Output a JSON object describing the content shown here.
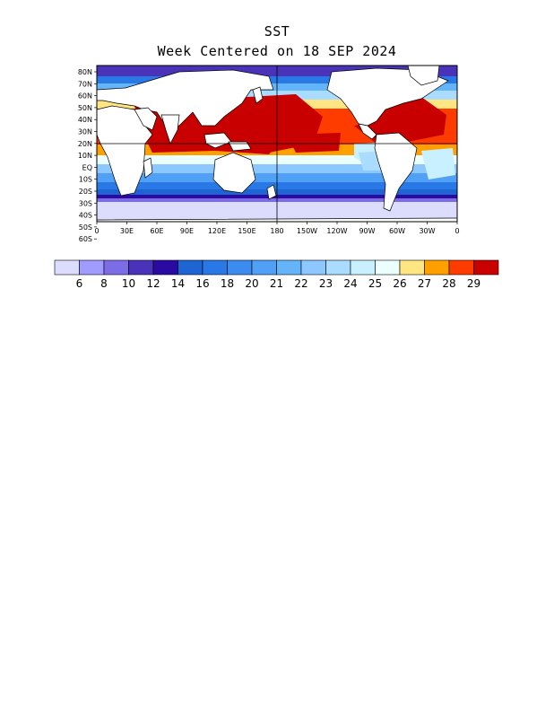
{
  "title": "SST",
  "subtitle": "Week Centered on 18 SEP 2024",
  "lat_labels": [
    "80N",
    "70N",
    "60N",
    "50N",
    "40N",
    "30N",
    "20N",
    "10N",
    "EQ",
    "10S",
    "20S",
    "30S",
    "40S",
    "50S",
    "60S"
  ],
  "lon_labels": [
    "0",
    "30E",
    "60E",
    "90E",
    "120E",
    "150E",
    "180",
    "150W",
    "120W",
    "90W",
    "60W",
    "30W",
    "0"
  ],
  "colorbar": {
    "colors": [
      "#dcdcff",
      "#a09bff",
      "#7c6de6",
      "#4a33b8",
      "#2a0aa0",
      "#1e64d2",
      "#2878e6",
      "#3c8cf0",
      "#50a0f5",
      "#64b4fa",
      "#8cc8ff",
      "#aadcff",
      "#c8f0ff",
      "#ebffff",
      "#ffe682",
      "#ffa000",
      "#ff3c00",
      "#c80000"
    ],
    "labels": [
      "6",
      "8",
      "10",
      "12",
      "14",
      "16",
      "18",
      "20",
      "21",
      "22",
      "23",
      "24",
      "25",
      "26",
      "27",
      "28",
      "29"
    ]
  },
  "land_color": "#ffffff",
  "coast_color": "#000000"
}
